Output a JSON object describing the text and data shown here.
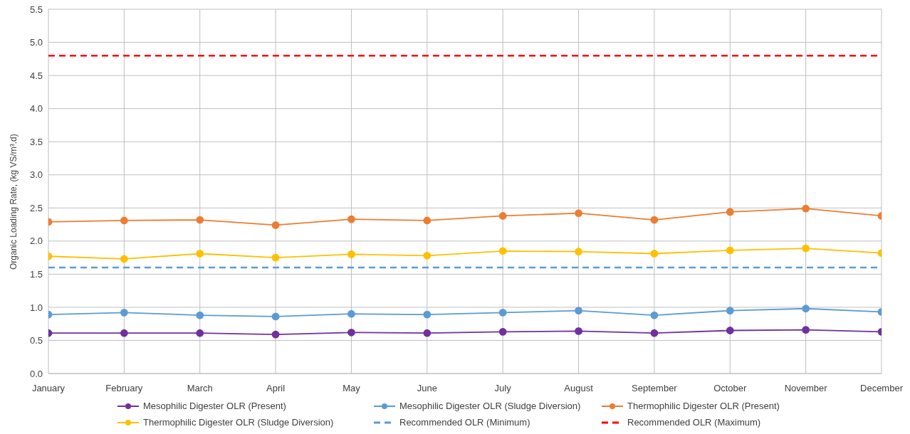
{
  "chart_data": {
    "type": "line",
    "ylabel": "Organic Loading Rate, (kg VS/m³.d)",
    "categories": [
      "January",
      "February",
      "March",
      "April",
      "May",
      "June",
      "July",
      "August",
      "September",
      "October",
      "November",
      "December"
    ],
    "series": [
      {
        "name": "Mesophilic Digester OLR (Present)",
        "color": "#7030a0",
        "values": [
          0.61,
          0.61,
          0.61,
          0.59,
          0.62,
          0.61,
          0.63,
          0.64,
          0.61,
          0.65,
          0.66,
          0.63
        ]
      },
      {
        "name": "Mesophilic Digester OLR (Sludge Diversion)",
        "color": "#5b9bd5",
        "values": [
          0.89,
          0.92,
          0.88,
          0.86,
          0.9,
          0.89,
          0.92,
          0.95,
          0.88,
          0.95,
          0.98,
          0.93
        ]
      },
      {
        "name": "Thermophilic Digester OLR (Present)",
        "color": "#ed7d31",
        "values": [
          2.29,
          2.31,
          2.32,
          2.24,
          2.33,
          2.31,
          2.38,
          2.42,
          2.32,
          2.44,
          2.49,
          2.38
        ]
      },
      {
        "name": "Thermophilic Digester OLR (Sludge Diversion)",
        "color": "#ffc000",
        "values": [
          1.77,
          1.73,
          1.81,
          1.75,
          1.8,
          1.78,
          1.85,
          1.84,
          1.81,
          1.86,
          1.89,
          1.82
        ]
      }
    ],
    "ref_lines": [
      {
        "axis": "y",
        "value": 1.6,
        "label": "Recommended OLR (Minimum)",
        "color": "#5b9bd5",
        "line_style": "dashed"
      },
      {
        "axis": "y",
        "value": 4.8,
        "label": "Recommended OLR (Maximum)",
        "color": "#ff0000",
        "line_style": "dashed"
      }
    ],
    "ylim": [
      0,
      5.5
    ],
    "yticks": [
      {
        "value": 0,
        "label": "0.0"
      },
      {
        "value": 0.5,
        "label": "0.5"
      },
      {
        "value": 1,
        "label": "1.0"
      },
      {
        "value": 1.5,
        "label": "1.5"
      },
      {
        "value": 2,
        "label": "2.0"
      },
      {
        "value": 2.5,
        "label": "2.5"
      },
      {
        "value": 3,
        "label": "3.0"
      },
      {
        "value": 3.5,
        "label": "3.5"
      },
      {
        "value": 4,
        "label": "4.0"
      },
      {
        "value": 4.5,
        "label": "4.5"
      },
      {
        "value": 5,
        "label": "5.0"
      },
      {
        "value": 5.5,
        "label": "5.5"
      }
    ],
    "grid": true,
    "legend": "bottom",
    "marker": "circle",
    "line_style": "solid"
  }
}
